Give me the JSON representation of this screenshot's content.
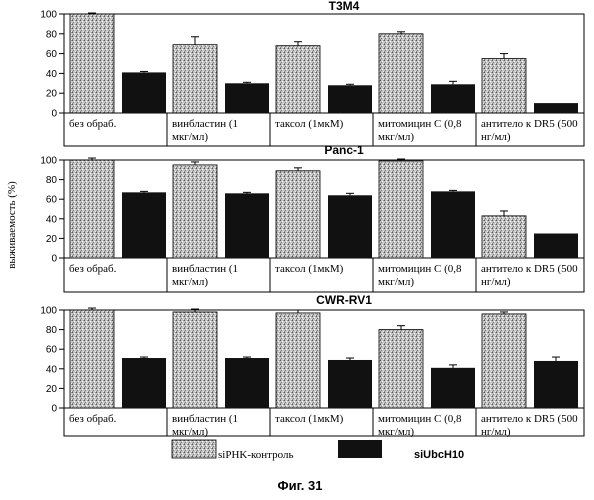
{
  "figure": {
    "ylabel": "выживаемость (%)",
    "caption": "Фиг. 31",
    "colors": {
      "control": "#bdbdbd",
      "sirna": "#111111"
    }
  },
  "chart_data": [
    {
      "type": "bar",
      "title": "T3M4",
      "categories": [
        "без обраб.",
        "винбластин (1 мкг/мл)",
        "таксол (1мкМ)",
        "митомицин С (0,8 мкг/мл)",
        "антитело к DR5 (500 нг/мл)"
      ],
      "yticks": [
        0,
        20,
        40,
        60,
        80,
        100
      ],
      "ylim": [
        0,
        100
      ],
      "series": [
        {
          "name": "siPHK-контроль",
          "values": [
            100,
            69,
            68,
            80,
            55
          ],
          "errors": [
            1,
            8,
            4,
            2,
            5
          ]
        },
        {
          "name": "siUbcH10",
          "values": [
            41,
            30,
            28,
            29,
            10
          ],
          "errors": [
            1,
            1,
            1,
            3,
            0
          ]
        }
      ]
    },
    {
      "type": "bar",
      "title": "Panc-1",
      "categories": [
        "без обраб.",
        "винбластин (1 мкг/мл)",
        "таксол (1мкМ)",
        "митомицин С (0,8 мкг/мл)",
        "антитело к DR5 (500 нг/мл)"
      ],
      "yticks": [
        0,
        20,
        40,
        60,
        80,
        100
      ],
      "ylim": [
        0,
        100
      ],
      "series": [
        {
          "name": "siPHK-контроль",
          "values": [
            100,
            95,
            89,
            99,
            43
          ],
          "errors": [
            2,
            3,
            3,
            2,
            5
          ]
        },
        {
          "name": "siUbcH10",
          "values": [
            67,
            66,
            64,
            68,
            25
          ],
          "errors": [
            1,
            1,
            2,
            1,
            0
          ]
        }
      ]
    },
    {
      "type": "bar",
      "title": "CWR-RV1",
      "categories": [
        "без обраб.",
        "винбластин (1 мкг/мл)",
        "таксол (1мкМ)",
        "митомицин С (0,8 мкг/мл)",
        "антитело к DR5 (500 нг/мл)"
      ],
      "yticks": [
        0,
        20,
        40,
        60,
        80,
        100
      ],
      "ylim": [
        0,
        100
      ],
      "series": [
        {
          "name": "siPHK-контроль",
          "values": [
            100,
            98,
            97,
            80,
            96
          ],
          "errors": [
            2,
            3,
            3,
            4,
            2
          ]
        },
        {
          "name": "siUbcH10",
          "values": [
            51,
            51,
            49,
            41,
            48
          ],
          "errors": [
            1,
            1,
            2,
            3,
            4
          ]
        }
      ]
    }
  ]
}
